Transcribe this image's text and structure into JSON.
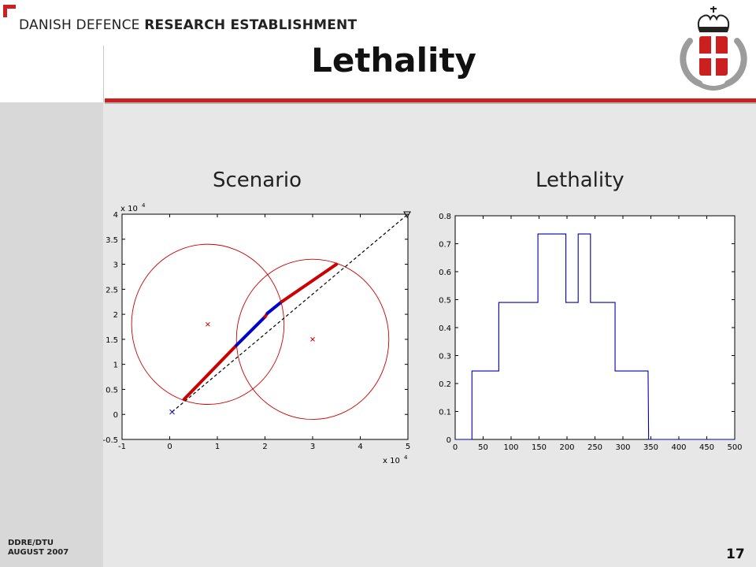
{
  "header": {
    "org_light": "DANISH DEFENCE ",
    "org_bold": "RESEARCH ESTABLISHMENT",
    "title": "Lethality"
  },
  "footer": {
    "line1": "DDRE/DTU",
    "line2": "AUGUST 2007",
    "page_number": "17"
  },
  "colors": {
    "brand_red": "#cc1f1f",
    "series_blue": "#0000cc",
    "series_red": "#cc0000"
  },
  "chart_data": [
    {
      "type": "scatter",
      "title": "Scenario",
      "x_exponent_label": "x 10",
      "y_exponent_label": "x 10",
      "exponent": "4",
      "xlim": [
        -1,
        5
      ],
      "ylim": [
        -0.5,
        4
      ],
      "x_ticks": [
        -1,
        0,
        1,
        2,
        3,
        4,
        5
      ],
      "y_ticks": [
        -0.5,
        0,
        0.5,
        1,
        1.5,
        2,
        2.5,
        3,
        3.5,
        4
      ],
      "circles": [
        {
          "center": [
            0.8,
            1.8
          ],
          "radius": 1.6
        },
        {
          "center": [
            3.0,
            1.5
          ],
          "radius": 1.6
        }
      ],
      "circle_centers": [
        [
          0.8,
          1.8
        ],
        [
          3.0,
          1.5
        ]
      ],
      "trajectory_dashed": [
        [
          0.05,
          0.05
        ],
        [
          5.0,
          4.0
        ]
      ],
      "trajectory_segments": [
        {
          "color": "red",
          "points": [
            [
              0.3,
              0.3
            ],
            [
              1.4,
              1.38
            ]
          ]
        },
        {
          "color": "blue",
          "points": [
            [
              1.4,
              1.38
            ],
            [
              2.0,
              1.95
            ]
          ]
        },
        {
          "color": "red",
          "points": [
            [
              2.0,
              1.95
            ],
            [
              2.05,
              2.02
            ]
          ]
        },
        {
          "color": "blue",
          "points": [
            [
              2.05,
              2.02
            ],
            [
              2.35,
              2.25
            ]
          ]
        },
        {
          "color": "red",
          "points": [
            [
              2.35,
              2.25
            ],
            [
              3.5,
              3.0
            ]
          ]
        }
      ],
      "start_marker": [
        0.05,
        0.05
      ],
      "end_marker": [
        5.0,
        4.0
      ]
    },
    {
      "type": "line",
      "title": "Lethality",
      "xlim": [
        0,
        500
      ],
      "ylim": [
        0,
        0.8
      ],
      "x_ticks": [
        0,
        50,
        100,
        150,
        200,
        250,
        300,
        350,
        400,
        450,
        500
      ],
      "y_ticks": [
        0,
        0.1,
        0.2,
        0.3,
        0.4,
        0.5,
        0.6,
        0.7,
        0.8
      ],
      "series": [
        {
          "x": [
            0,
            30,
            30,
            78,
            78,
            148,
            148,
            198,
            198,
            220,
            220,
            242,
            242,
            286,
            286,
            345,
            346,
            500
          ],
          "y": [
            0,
            0,
            0.245,
            0.245,
            0.49,
            0.49,
            0.735,
            0.735,
            0.49,
            0.49,
            0.735,
            0.735,
            0.49,
            0.49,
            0.245,
            0.245,
            0,
            0
          ]
        }
      ]
    }
  ]
}
